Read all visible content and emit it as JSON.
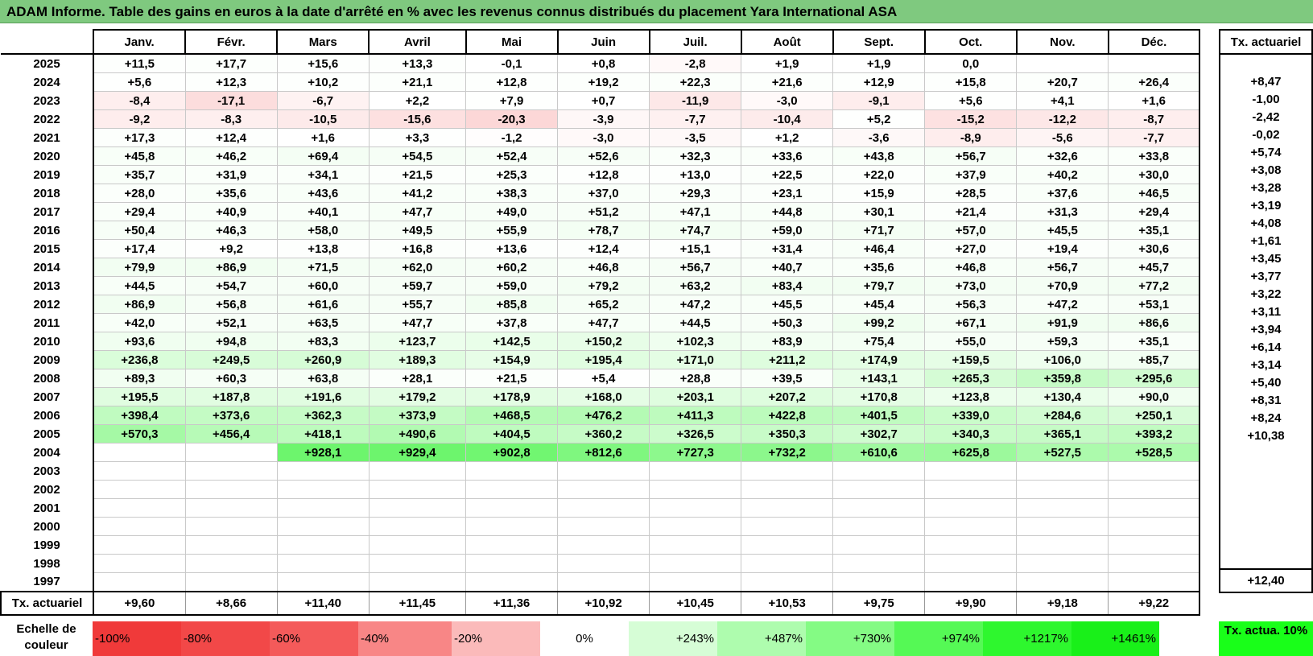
{
  "title": "ADAM Informe. Table des gains en euros à la date d'arrêté en % avec les revenus connus distribués du placement Yara International ASA",
  "months": [
    "Janv.",
    "Févr.",
    "Mars",
    "Avril",
    "Mai",
    "Juin",
    "Juil.",
    "Août",
    "Sept.",
    "Oct.",
    "Nov.",
    "Déc."
  ],
  "rate_header": "Tx. actuariel",
  "rows": [
    {
      "year": "2025",
      "values": [
        "+11,5",
        "+17,7",
        "+15,6",
        "+13,3",
        "-0,1",
        "+0,8",
        "-2,8",
        "+1,9",
        "+1,9",
        "0,0",
        "",
        ""
      ],
      "rate": ""
    },
    {
      "year": "2024",
      "values": [
        "+5,6",
        "+12,3",
        "+10,2",
        "+21,1",
        "+12,8",
        "+19,2",
        "+22,3",
        "+21,6",
        "+12,9",
        "+15,8",
        "+20,7",
        "+26,4"
      ],
      "rate": "+8,47"
    },
    {
      "year": "2023",
      "values": [
        "-8,4",
        "-17,1",
        "-6,7",
        "+2,2",
        "+7,9",
        "+0,7",
        "-11,9",
        "-3,0",
        "-9,1",
        "+5,6",
        "+4,1",
        "+1,6"
      ],
      "rate": "-1,00"
    },
    {
      "year": "2022",
      "values": [
        "-9,2",
        "-8,3",
        "-10,5",
        "-15,6",
        "-20,3",
        "-3,9",
        "-7,7",
        "-10,4",
        "+5,2",
        "-15,2",
        "-12,2",
        "-8,7"
      ],
      "rate": "-2,42"
    },
    {
      "year": "2021",
      "values": [
        "+17,3",
        "+12,4",
        "+1,6",
        "+3,3",
        "-1,2",
        "-3,0",
        "-3,5",
        "+1,2",
        "-3,6",
        "-8,9",
        "-5,6",
        "-7,7"
      ],
      "rate": "-0,02"
    },
    {
      "year": "2020",
      "values": [
        "+45,8",
        "+46,2",
        "+69,4",
        "+54,5",
        "+52,4",
        "+52,6",
        "+32,3",
        "+33,6",
        "+43,8",
        "+56,7",
        "+32,6",
        "+33,8"
      ],
      "rate": "+5,74"
    },
    {
      "year": "2019",
      "values": [
        "+35,7",
        "+31,9",
        "+34,1",
        "+21,5",
        "+25,3",
        "+12,8",
        "+13,0",
        "+22,5",
        "+22,0",
        "+37,9",
        "+40,2",
        "+30,0"
      ],
      "rate": "+3,08"
    },
    {
      "year": "2018",
      "values": [
        "+28,0",
        "+35,6",
        "+43,6",
        "+41,2",
        "+38,3",
        "+37,0",
        "+29,3",
        "+23,1",
        "+15,9",
        "+28,5",
        "+37,6",
        "+46,5"
      ],
      "rate": "+3,28"
    },
    {
      "year": "2017",
      "values": [
        "+29,4",
        "+40,9",
        "+40,1",
        "+47,7",
        "+49,0",
        "+51,2",
        "+47,1",
        "+44,8",
        "+30,1",
        "+21,4",
        "+31,3",
        "+29,4"
      ],
      "rate": "+3,19"
    },
    {
      "year": "2016",
      "values": [
        "+50,4",
        "+46,3",
        "+58,0",
        "+49,5",
        "+55,9",
        "+78,7",
        "+74,7",
        "+59,0",
        "+71,7",
        "+57,0",
        "+45,5",
        "+35,1"
      ],
      "rate": "+4,08"
    },
    {
      "year": "2015",
      "values": [
        "+17,4",
        "+9,2",
        "+13,8",
        "+16,8",
        "+13,6",
        "+12,4",
        "+15,1",
        "+31,4",
        "+46,4",
        "+27,0",
        "+19,4",
        "+30,6"
      ],
      "rate": "+1,61"
    },
    {
      "year": "2014",
      "values": [
        "+79,9",
        "+86,9",
        "+71,5",
        "+62,0",
        "+60,2",
        "+46,8",
        "+56,7",
        "+40,7",
        "+35,6",
        "+46,8",
        "+56,7",
        "+45,7"
      ],
      "rate": "+3,45"
    },
    {
      "year": "2013",
      "values": [
        "+44,5",
        "+54,7",
        "+60,0",
        "+59,7",
        "+59,0",
        "+79,2",
        "+63,2",
        "+83,4",
        "+79,7",
        "+73,0",
        "+70,9",
        "+77,2"
      ],
      "rate": "+3,77"
    },
    {
      "year": "2012",
      "values": [
        "+86,9",
        "+56,8",
        "+61,6",
        "+55,7",
        "+85,8",
        "+65,2",
        "+47,2",
        "+45,5",
        "+45,4",
        "+56,3",
        "+47,2",
        "+53,1"
      ],
      "rate": "+3,22"
    },
    {
      "year": "2011",
      "values": [
        "+42,0",
        "+52,1",
        "+63,5",
        "+47,7",
        "+37,8",
        "+47,7",
        "+44,5",
        "+50,3",
        "+99,2",
        "+67,1",
        "+91,9",
        "+86,6"
      ],
      "rate": "+3,11"
    },
    {
      "year": "2010",
      "values": [
        "+93,6",
        "+94,8",
        "+83,3",
        "+123,7",
        "+142,5",
        "+150,2",
        "+102,3",
        "+83,9",
        "+75,4",
        "+55,0",
        "+59,3",
        "+35,1"
      ],
      "rate": "+3,94"
    },
    {
      "year": "2009",
      "values": [
        "+236,8",
        "+249,5",
        "+260,9",
        "+189,3",
        "+154,9",
        "+195,4",
        "+171,0",
        "+211,2",
        "+174,9",
        "+159,5",
        "+106,0",
        "+85,7"
      ],
      "rate": "+6,14"
    },
    {
      "year": "2008",
      "values": [
        "+89,3",
        "+60,3",
        "+63,8",
        "+28,1",
        "+21,5",
        "+5,4",
        "+28,8",
        "+39,5",
        "+143,1",
        "+265,3",
        "+359,8",
        "+295,6"
      ],
      "rate": "+3,14"
    },
    {
      "year": "2007",
      "values": [
        "+195,5",
        "+187,8",
        "+191,6",
        "+179,2",
        "+178,9",
        "+168,0",
        "+203,1",
        "+207,2",
        "+170,8",
        "+123,8",
        "+130,4",
        "+90,0"
      ],
      "rate": "+5,40"
    },
    {
      "year": "2006",
      "values": [
        "+398,4",
        "+373,6",
        "+362,3",
        "+373,9",
        "+468,5",
        "+476,2",
        "+411,3",
        "+422,8",
        "+401,5",
        "+339,0",
        "+284,6",
        "+250,1"
      ],
      "rate": "+8,31"
    },
    {
      "year": "2005",
      "values": [
        "+570,3",
        "+456,4",
        "+418,1",
        "+490,6",
        "+404,5",
        "+360,2",
        "+326,5",
        "+350,3",
        "+302,7",
        "+340,3",
        "+365,1",
        "+393,2"
      ],
      "rate": "+8,24"
    },
    {
      "year": "2004",
      "values": [
        "",
        "",
        "+928,1",
        "+929,4",
        "+902,8",
        "+812,6",
        "+727,3",
        "+732,2",
        "+610,6",
        "+625,8",
        "+527,5",
        "+528,5"
      ],
      "rate": "+10,38"
    },
    {
      "year": "2003",
      "values": [
        "",
        "",
        "",
        "",
        "",
        "",
        "",
        "",
        "",
        "",
        "",
        ""
      ],
      "rate": ""
    },
    {
      "year": "2002",
      "values": [
        "",
        "",
        "",
        "",
        "",
        "",
        "",
        "",
        "",
        "",
        "",
        ""
      ],
      "rate": ""
    },
    {
      "year": "2001",
      "values": [
        "",
        "",
        "",
        "",
        "",
        "",
        "",
        "",
        "",
        "",
        "",
        ""
      ],
      "rate": ""
    },
    {
      "year": "2000",
      "values": [
        "",
        "",
        "",
        "",
        "",
        "",
        "",
        "",
        "",
        "",
        "",
        ""
      ],
      "rate": ""
    },
    {
      "year": "1999",
      "values": [
        "",
        "",
        "",
        "",
        "",
        "",
        "",
        "",
        "",
        "",
        "",
        ""
      ],
      "rate": ""
    },
    {
      "year": "1998",
      "values": [
        "",
        "",
        "",
        "",
        "",
        "",
        "",
        "",
        "",
        "",
        "",
        ""
      ],
      "rate": ""
    },
    {
      "year": "1997",
      "values": [
        "",
        "",
        "",
        "",
        "",
        "",
        "",
        "",
        "",
        "",
        "",
        ""
      ],
      "rate": ""
    }
  ],
  "total_row": {
    "label": "Tx. actuariel",
    "values": [
      "+9,60",
      "+8,66",
      "+11,40",
      "+11,45",
      "+11,36",
      "+10,92",
      "+10,45",
      "+10,53",
      "+9,75",
      "+9,90",
      "+9,18",
      "+9,22"
    ],
    "rate": "+12,40"
  },
  "scale": {
    "label": "Echelle de couleur",
    "cells": [
      {
        "text": "-100%",
        "color": "#f03a3a"
      },
      {
        "text": "-80%",
        "color": "#f24848"
      },
      {
        "text": "-60%",
        "color": "#f45a5a"
      },
      {
        "text": "-40%",
        "color": "#f88686"
      },
      {
        "text": "-20%",
        "color": "#fbbaba"
      },
      {
        "text": "0%",
        "color": "#ffffff"
      },
      {
        "text": "+243%",
        "color": "#d6fdd6"
      },
      {
        "text": "+487%",
        "color": "#aefcae"
      },
      {
        "text": "+730%",
        "color": "#84fb84"
      },
      {
        "text": "+974%",
        "color": "#55f955"
      },
      {
        "text": "+1217%",
        "color": "#2ef72e"
      },
      {
        "text": "+1461%",
        "color": "#19f019"
      }
    ],
    "rate_label": "Tx. actua. 10%",
    "rate_color": "#19ff19"
  }
}
